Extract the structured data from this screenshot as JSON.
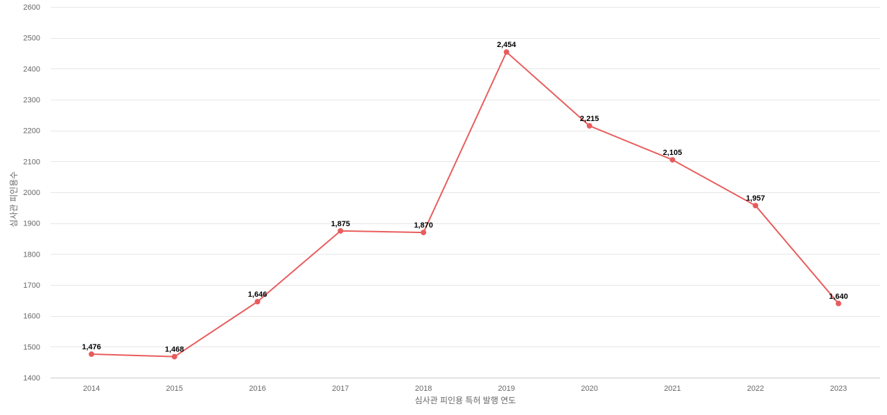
{
  "chart_data": {
    "type": "line",
    "title": "",
    "xlabel": "심사관 피인용 특허 발행 연도",
    "ylabel": "심사관 피인용수",
    "x": [
      "2014",
      "2015",
      "2016",
      "2017",
      "2018",
      "2019",
      "2020",
      "2021",
      "2022",
      "2023"
    ],
    "series": [
      {
        "values": [
          1476,
          1468,
          1646,
          1875,
          1870,
          2454,
          2215,
          2105,
          1957,
          1640
        ],
        "data_labels": [
          "1,476",
          "1,468",
          "1,646",
          "1,875",
          "1,870",
          "2,454",
          "2,215",
          "2,105",
          "1,957",
          "1,640"
        ]
      }
    ],
    "ylim": [
      1400,
      2600
    ],
    "yticks": [
      "1400",
      "1500",
      "1600",
      "1700",
      "1800",
      "1900",
      "2000",
      "2100",
      "2200",
      "2300",
      "2400",
      "2500",
      "2600"
    ],
    "grid": true,
    "legend": "none",
    "line_color": "#e85c5c",
    "grid_color": "#e6e6e6",
    "tick_color": "#666666"
  }
}
